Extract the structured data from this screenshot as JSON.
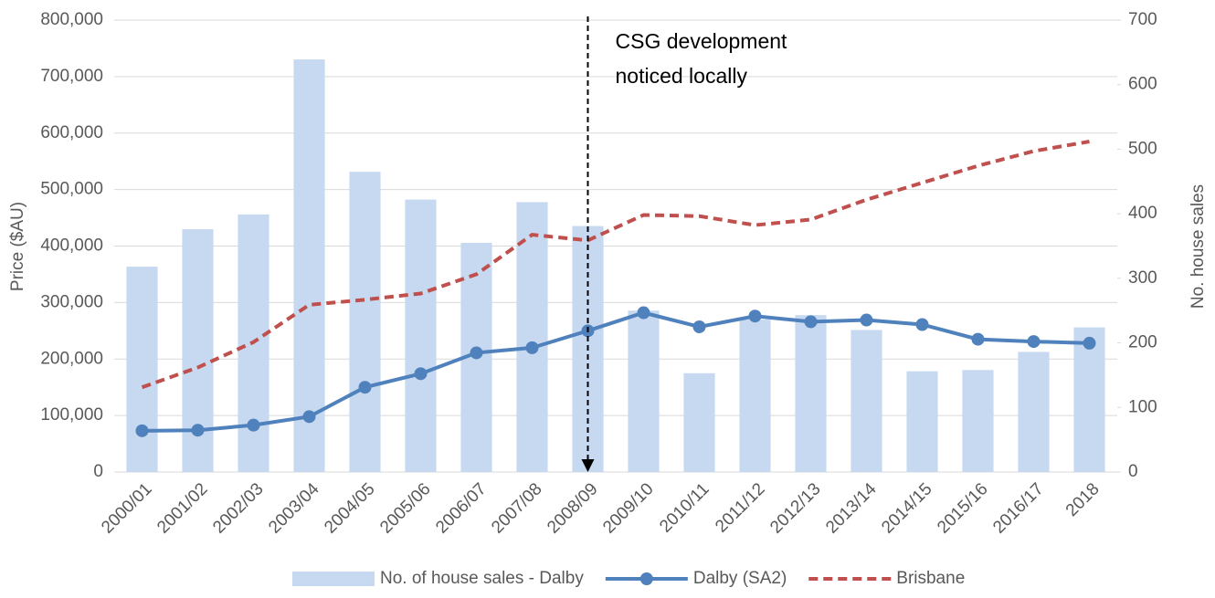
{
  "chart_data": {
    "type": "combo",
    "categories": [
      "2000/01",
      "2001/02",
      "2002/03",
      "2003/04",
      "2004/05",
      "2005/06",
      "2006/07",
      "2007/08",
      "2008/09",
      "2009/10",
      "2010/11",
      "2011/12",
      "2012/13",
      "2013/14",
      "2014/15",
      "2015/16",
      "2016/17",
      "2018"
    ],
    "series": [
      {
        "name": "No. of house sales - Dalby",
        "type": "bar",
        "axis": "y2",
        "color": "#c6d9f1",
        "values": [
          318,
          376,
          399,
          639,
          465,
          422,
          355,
          418,
          381,
          250,
          153,
          236,
          243,
          220,
          156,
          158,
          186,
          224
        ]
      },
      {
        "name": "Dalby (SA2)",
        "type": "line",
        "color": "#4f81bd",
        "marker": true,
        "values": [
          73000,
          74000,
          83000,
          98000,
          150000,
          174000,
          211000,
          220000,
          250000,
          282000,
          257000,
          276000,
          266000,
          269000,
          261000,
          235000,
          231000,
          228000
        ]
      },
      {
        "name": "Brisbane",
        "type": "line",
        "color": "#c0504d",
        "dashed": true,
        "values": [
          150000,
          185000,
          230000,
          296000,
          305000,
          316000,
          350000,
          420000,
          410000,
          455000,
          453000,
          437000,
          447000,
          482000,
          512000,
          542000,
          568000,
          585000
        ]
      }
    ],
    "ylabel": "Price ($AU)",
    "y2label": "No. house sales",
    "ylim": [
      0,
      800000
    ],
    "yticks": [
      0,
      {
        "value": 100000,
        "label": "100,000"
      },
      {
        "value": 200000,
        "label": "200,000"
      },
      {
        "value": 300000,
        "label": "300,000"
      },
      {
        "value": 400000,
        "label": "400,000"
      },
      {
        "value": 500000,
        "label": "500,000"
      },
      {
        "value": 600000,
        "label": "600,000"
      },
      {
        "value": 700000,
        "label": "700,000"
      },
      {
        "value": 800000,
        "label": "800,000"
      }
    ],
    "y2lim": [
      0,
      700
    ],
    "y2ticks": [
      0,
      100,
      200,
      300,
      400,
      500,
      600,
      700
    ],
    "grid": true,
    "legend": "bottom",
    "annotation": {
      "lines": [
        "CSG development",
        "noticed locally"
      ],
      "category": 8
    }
  }
}
